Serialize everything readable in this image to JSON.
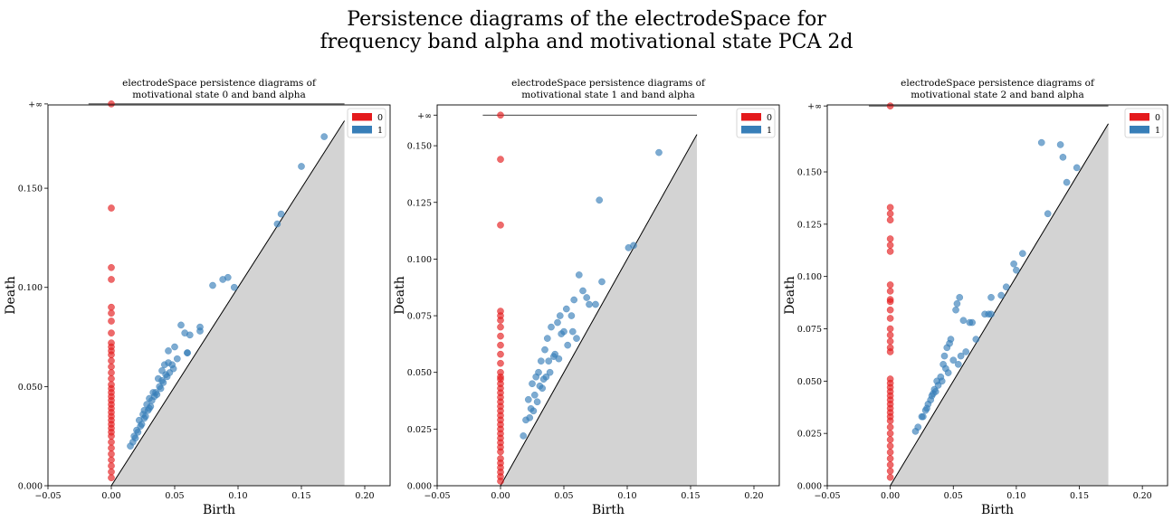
{
  "suptitle": [
    "Persistence diagrams of the electrodeSpace for",
    "frequency band alpha and motivational state PCA 2d"
  ],
  "colors": {
    "h0": "#e41a1c",
    "h1": "#377eb8",
    "diagonal_fill": "#d3d3d3",
    "line": "#000000"
  },
  "chart_data": [
    {
      "type": "scatter",
      "title": [
        "electrodeSpace persistence diagrams of",
        "motivational state 0 and band alpha"
      ],
      "xlabel": "Birth",
      "ylabel": "Death",
      "xlim": [
        -0.05,
        0.22
      ],
      "ylim": [
        0.0,
        0.192
      ],
      "diag_end": 0.184,
      "inf_value": 0.1925,
      "inf_label": "+∞",
      "inf_line": [
        -0.018,
        0.184
      ],
      "xticks": [
        -0.05,
        0.0,
        0.05,
        0.1,
        0.15,
        0.2
      ],
      "xtick_labels": [
        "−0.05",
        "0.00",
        "0.05",
        "0.10",
        "0.15",
        "0.20"
      ],
      "yticks": [
        0.0,
        0.05,
        0.1,
        0.15
      ],
      "ytick_labels": [
        "0.000",
        "0.050",
        "0.100",
        "0.150"
      ],
      "legend": {
        "position": "top-right",
        "entries": [
          "0",
          "1"
        ]
      },
      "series": [
        {
          "name": "0",
          "x": [
            0,
            0,
            0,
            0,
            0,
            0,
            0,
            0,
            0,
            0,
            0,
            0,
            0,
            0,
            0,
            0,
            0,
            0,
            0,
            0,
            0,
            0,
            0,
            0,
            0,
            0,
            0,
            0,
            0,
            0,
            0,
            0,
            0,
            0,
            0,
            0,
            0
          ],
          "y": [
            0.1925,
            0.14,
            0.11,
            0.104,
            0.09,
            0.087,
            0.083,
            0.077,
            0.072,
            0.07,
            0.068,
            0.066,
            0.063,
            0.06,
            0.057,
            0.054,
            0.051,
            0.049,
            0.047,
            0.045,
            0.043,
            0.041,
            0.039,
            0.037,
            0.035,
            0.033,
            0.031,
            0.029,
            0.027,
            0.025,
            0.022,
            0.019,
            0.016,
            0.013,
            0.01,
            0.007,
            0.004
          ]
        },
        {
          "name": "1",
          "x": [
            0.168,
            0.15,
            0.134,
            0.131,
            0.097,
            0.092,
            0.088,
            0.08,
            0.07,
            0.07,
            0.062,
            0.06,
            0.055,
            0.06,
            0.058,
            0.05,
            0.045,
            0.045,
            0.042,
            0.04,
            0.04,
            0.037,
            0.035,
            0.033,
            0.03,
            0.028,
            0.026,
            0.025,
            0.022,
            0.02,
            0.018,
            0.017,
            0.015,
            0.048,
            0.043,
            0.038,
            0.036,
            0.031,
            0.029,
            0.027,
            0.024,
            0.021,
            0.019,
            0.032,
            0.046,
            0.041,
            0.052,
            0.034,
            0.023,
            0.039,
            0.044,
            0.026,
            0.03,
            0.049
          ],
          "y": [
            0.176,
            0.161,
            0.137,
            0.132,
            0.1,
            0.105,
            0.104,
            0.101,
            0.08,
            0.078,
            0.076,
            0.067,
            0.081,
            0.067,
            0.077,
            0.07,
            0.068,
            0.062,
            0.061,
            0.058,
            0.053,
            0.054,
            0.047,
            0.047,
            0.044,
            0.041,
            0.038,
            0.036,
            0.033,
            0.028,
            0.025,
            0.022,
            0.02,
            0.061,
            0.056,
            0.05,
            0.046,
            0.04,
            0.038,
            0.035,
            0.031,
            0.027,
            0.024,
            0.043,
            0.057,
            0.052,
            0.064,
            0.045,
            0.03,
            0.049,
            0.055,
            0.034,
            0.039,
            0.059
          ]
        }
      ]
    },
    {
      "type": "scatter",
      "title": [
        "electrodeSpace persistence diagrams of",
        "motivational state 1 and band alpha"
      ],
      "xlabel": "Birth",
      "ylabel": "Death",
      "xlim": [
        -0.05,
        0.22
      ],
      "ylim": [
        0.0,
        0.168
      ],
      "diag_end": 0.155,
      "inf_value": 0.1635,
      "inf_label": "+∞",
      "inf_line": [
        -0.014,
        0.155
      ],
      "xticks": [
        -0.05,
        0.0,
        0.05,
        0.1,
        0.15,
        0.2
      ],
      "xtick_labels": [
        "−0.05",
        "0.00",
        "0.05",
        "0.10",
        "0.15",
        "0.20"
      ],
      "yticks": [
        0.0,
        0.025,
        0.05,
        0.075,
        0.1,
        0.125,
        0.15
      ],
      "ytick_labels": [
        "0.000",
        "0.025",
        "0.050",
        "0.075",
        "0.100",
        "0.125",
        "0.150"
      ],
      "legend": {
        "position": "top-right",
        "entries": [
          "0",
          "1"
        ]
      },
      "series": [
        {
          "name": "0",
          "x": [
            0,
            0,
            0,
            0,
            0,
            0,
            0,
            0,
            0,
            0,
            0,
            0,
            0,
            0,
            0,
            0,
            0,
            0,
            0,
            0,
            0,
            0,
            0,
            0,
            0,
            0,
            0,
            0,
            0,
            0,
            0,
            0,
            0,
            0,
            0,
            0
          ],
          "y": [
            0.1635,
            0.144,
            0.115,
            0.077,
            0.075,
            0.073,
            0.07,
            0.066,
            0.062,
            0.058,
            0.054,
            0.05,
            0.047,
            0.045,
            0.043,
            0.041,
            0.039,
            0.037,
            0.035,
            0.033,
            0.031,
            0.029,
            0.027,
            0.025,
            0.023,
            0.021,
            0.019,
            0.017,
            0.015,
            0.012,
            0.01,
            0.008,
            0.006,
            0.004,
            0.002,
            0.048
          ]
        },
        {
          "name": "1",
          "x": [
            0.125,
            0.078,
            0.105,
            0.101,
            0.08,
            0.068,
            0.065,
            0.058,
            0.052,
            0.047,
            0.045,
            0.04,
            0.037,
            0.035,
            0.032,
            0.03,
            0.028,
            0.025,
            0.022,
            0.02,
            0.018,
            0.048,
            0.043,
            0.038,
            0.034,
            0.031,
            0.027,
            0.024,
            0.062,
            0.056,
            0.05,
            0.042,
            0.036,
            0.029,
            0.026,
            0.023,
            0.057,
            0.06,
            0.053,
            0.046,
            0.039,
            0.033,
            0.07,
            0.075
          ],
          "y": [
            0.147,
            0.126,
            0.106,
            0.105,
            0.09,
            0.083,
            0.086,
            0.082,
            0.078,
            0.075,
            0.072,
            0.07,
            0.065,
            0.06,
            0.055,
            0.05,
            0.048,
            0.045,
            0.038,
            0.029,
            0.022,
            0.067,
            0.058,
            0.055,
            0.047,
            0.044,
            0.04,
            0.034,
            0.093,
            0.075,
            0.068,
            0.057,
            0.048,
            0.037,
            0.033,
            0.03,
            0.068,
            0.065,
            0.062,
            0.056,
            0.05,
            0.043,
            0.08,
            0.08
          ]
        }
      ]
    },
    {
      "type": "scatter",
      "title": [
        "electrodeSpace persistence diagrams of",
        "motivational state 2 and band alpha"
      ],
      "xlabel": "Birth",
      "ylabel": "Death",
      "xlim": [
        -0.05,
        0.22
      ],
      "ylim": [
        0.0,
        0.182
      ],
      "diag_end": 0.173,
      "inf_value": 0.1815,
      "inf_label": "+∞",
      "inf_line": [
        -0.017,
        0.173
      ],
      "xticks": [
        -0.05,
        0.0,
        0.05,
        0.1,
        0.15,
        0.2
      ],
      "xtick_labels": [
        "−0.05",
        "0.00",
        "0.05",
        "0.10",
        "0.15",
        "0.20"
      ],
      "yticks": [
        0.0,
        0.025,
        0.05,
        0.075,
        0.1,
        0.125,
        0.15
      ],
      "ytick_labels": [
        "0.000",
        "0.025",
        "0.050",
        "0.075",
        "0.100",
        "0.125",
        "0.150"
      ],
      "legend": {
        "position": "top-right",
        "entries": [
          "0",
          "1"
        ]
      },
      "series": [
        {
          "name": "0",
          "x": [
            0,
            0,
            0,
            0,
            0,
            0,
            0,
            0,
            0,
            0,
            0,
            0,
            0,
            0,
            0,
            0,
            0,
            0,
            0,
            0,
            0,
            0,
            0,
            0,
            0,
            0,
            0,
            0,
            0,
            0,
            0,
            0,
            0,
            0,
            0,
            0,
            0,
            0
          ],
          "y": [
            0.1815,
            0.133,
            0.13,
            0.127,
            0.118,
            0.115,
            0.112,
            0.096,
            0.093,
            0.089,
            0.088,
            0.084,
            0.08,
            0.075,
            0.072,
            0.069,
            0.066,
            0.064,
            0.051,
            0.049,
            0.047,
            0.045,
            0.043,
            0.041,
            0.039,
            0.037,
            0.035,
            0.033,
            0.031,
            0.028,
            0.025,
            0.022,
            0.019,
            0.016,
            0.013,
            0.01,
            0.007,
            0.004
          ]
        },
        {
          "name": "1",
          "x": [
            0.12,
            0.135,
            0.137,
            0.14,
            0.148,
            0.125,
            0.105,
            0.1,
            0.098,
            0.092,
            0.088,
            0.08,
            0.075,
            0.065,
            0.063,
            0.058,
            0.055,
            0.053,
            0.052,
            0.048,
            0.047,
            0.045,
            0.043,
            0.042,
            0.04,
            0.037,
            0.035,
            0.033,
            0.03,
            0.028,
            0.025,
            0.022,
            0.02,
            0.05,
            0.044,
            0.038,
            0.036,
            0.032,
            0.029,
            0.026,
            0.056,
            0.06,
            0.054,
            0.046,
            0.041,
            0.034,
            0.068,
            0.078,
            0.08
          ],
          "y": [
            0.164,
            0.163,
            0.157,
            0.145,
            0.152,
            0.13,
            0.111,
            0.103,
            0.106,
            0.095,
            0.091,
            0.09,
            0.082,
            0.078,
            0.078,
            0.079,
            0.09,
            0.087,
            0.084,
            0.07,
            0.068,
            0.066,
            0.062,
            0.058,
            0.052,
            0.05,
            0.046,
            0.043,
            0.039,
            0.036,
            0.033,
            0.028,
            0.026,
            0.06,
            0.056,
            0.048,
            0.045,
            0.041,
            0.037,
            0.033,
            0.062,
            0.064,
            0.058,
            0.054,
            0.05,
            0.044,
            0.07,
            0.082,
            0.082
          ]
        }
      ]
    }
  ]
}
